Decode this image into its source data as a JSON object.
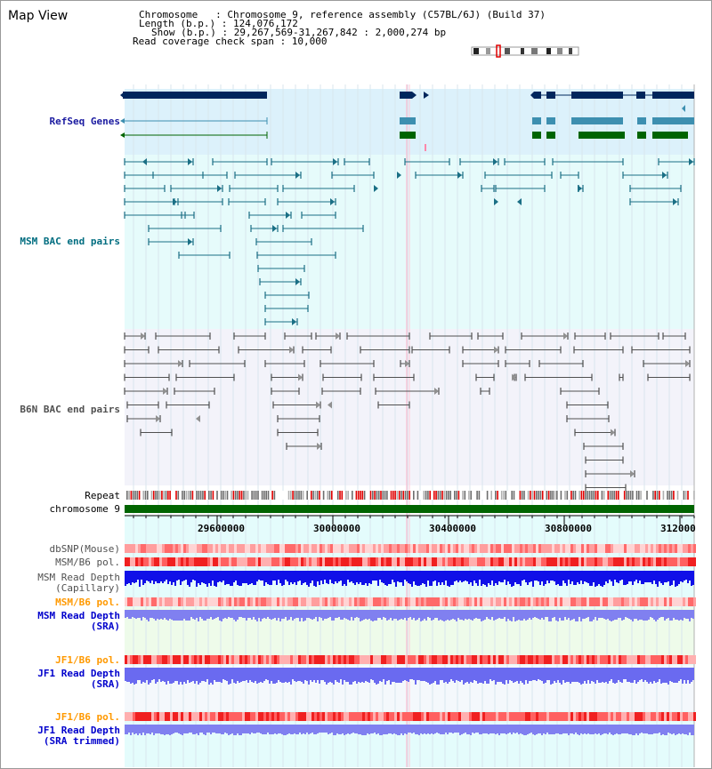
{
  "window_title": "Map View",
  "header": {
    "chromosome_key": "Chromosome",
    "chromosome_val": ": Chromosome 9, reference assembly (C57BL/6J) (Build 37)",
    "length_key": "Length (b.p.)",
    "length_val": ": 124,076,172",
    "show_key": "Show (b.p.)",
    "show_val": ": 29,267,569-31,267,842 : 2,000,274 bp",
    "coverage_text": "Read coverage check span : 10,000"
  },
  "tracks": {
    "refseq": "RefSeq Genes",
    "msm_bac": "MSM BAC end pairs",
    "b6n_bac": "B6N BAC end pairs",
    "repeat": "Repeat",
    "chromosome": "chromosome 9",
    "dbsnp": "dbSNP(Mouse)",
    "msm_b6_pol_1": "MSM/B6 pol.",
    "msm_depth_cap_1": "MSM Read Depth",
    "msm_depth_cap_2": "(Capillary)",
    "msm_b6_pol_2": "MSM/B6 pol.",
    "msm_depth_sra_1": "MSM Read Depth",
    "msm_depth_sra_2": "(SRA)",
    "jf1_b6_pol_1": "JF1/B6 pol.",
    "jf1_depth_sra_1": "JF1 Read Depth",
    "jf1_depth_sra_2": "(SRA)",
    "jf1_b6_pol_2": "JF1/B6 pol.",
    "jf1_depth_trim_1": "JF1 Read Depth",
    "jf1_depth_trim_2": "(SRA trimmed)"
  },
  "axis_ticks": [
    "29600000",
    "30000000",
    "30400000",
    "30800000",
    "312000"
  ],
  "colors": {
    "refseq_label": "#1a1aa0",
    "msm_label": "#006d80",
    "b6n_label": "#505050",
    "pol_label": "#ff9900",
    "depth_label": "#0000cc",
    "refseq_dark": "#00265c",
    "refseq_teal": "#3d8fb0",
    "refseq_green": "#006400",
    "msm_line": "#1a6f85",
    "b6n_line": "#505050",
    "chromosome_bar": "#006400"
  }
}
